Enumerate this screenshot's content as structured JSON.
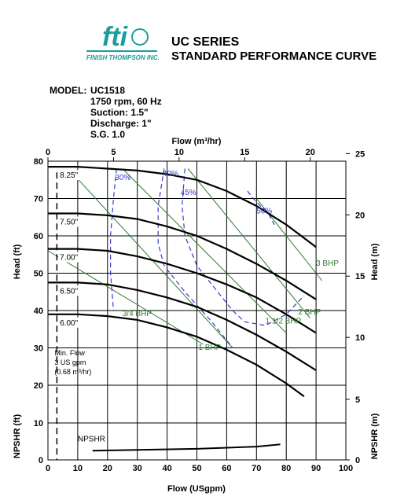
{
  "header": {
    "logo_text": "fti",
    "company": "FINISH THOMPSON INC.",
    "series": "UC SERIES",
    "subtitle": "STANDARD PERFORMANCE CURVE"
  },
  "model_info": {
    "label": "MODEL:",
    "lines": [
      "UC1518",
      "1750 rpm, 60 Hz",
      "Suction: 1.5\"",
      "Discharge: 1\"",
      "S.G. 1.0"
    ]
  },
  "colors": {
    "head_curve": "#000000",
    "efficiency": "#3a3acf",
    "bhp": "#2e7d32",
    "logo": "#1a9e9e"
  },
  "chart_data": {
    "type": "line",
    "xlabel": "Flow (USgpm)",
    "x2label": "Flow (m³/hr)",
    "ylabel": "Head (ft)",
    "y2label": "Head (m)",
    "npsh_ylabel": "NPSHR (ft)",
    "npsh_y2label": "NPSHR (m)",
    "xlim": [
      0,
      100
    ],
    "x_ticks": [
      0,
      10,
      20,
      30,
      40,
      50,
      60,
      70,
      80,
      90,
      100
    ],
    "x2_ticks": [
      0,
      5,
      10,
      15,
      20
    ],
    "ylim": [
      20,
      80
    ],
    "y_ticks": [
      20,
      30,
      40,
      50,
      60,
      70,
      80
    ],
    "y2_ticks": [
      10,
      15,
      20,
      25
    ],
    "npsh_ylim": [
      0,
      10
    ],
    "npsh_y_ticks": [
      0,
      10
    ],
    "npsh_y2_ticks": [
      0,
      5
    ],
    "series": [
      {
        "name": "8.25\"",
        "x": [
          0,
          10,
          20,
          30,
          40,
          50,
          55,
          60,
          70,
          80,
          90
        ],
        "y": [
          78.5,
          78.5,
          78,
          77.5,
          76.5,
          75,
          73.5,
          72,
          68,
          63,
          57
        ]
      },
      {
        "name": "7.50\"",
        "x": [
          0,
          10,
          20,
          30,
          40,
          50,
          60,
          70,
          80,
          90
        ],
        "y": [
          66,
          66,
          65.5,
          64.5,
          62.5,
          60,
          56.5,
          52.5,
          48,
          43
        ]
      },
      {
        "name": "7.00\"",
        "x": [
          0,
          10,
          20,
          30,
          40,
          50,
          60,
          70,
          80,
          90
        ],
        "y": [
          56.5,
          56.5,
          56,
          54.5,
          52.5,
          50,
          47,
          43.5,
          39,
          34
        ]
      },
      {
        "name": "6.50\"",
        "x": [
          0,
          10,
          20,
          30,
          40,
          50,
          60,
          70,
          80,
          90
        ],
        "y": [
          47.5,
          47.5,
          47,
          45.5,
          43.5,
          41,
          37.5,
          33.5,
          29,
          24
        ]
      },
      {
        "name": "6.00\"",
        "x": [
          0,
          10,
          20,
          30,
          40,
          50,
          60,
          70,
          80,
          86
        ],
        "y": [
          39,
          39,
          38.5,
          37.5,
          35.5,
          33,
          29.5,
          25.5,
          20.5,
          17
        ]
      }
    ],
    "efficiency": [
      {
        "label": "30%",
        "x": [
          23,
          22,
          21,
          21,
          22
        ],
        "y": [
          78,
          70,
          60,
          50,
          40
        ]
      },
      {
        "label": "40%",
        "x": [
          39,
          37,
          37,
          39,
          46,
          55,
          62
        ],
        "y": [
          78,
          68,
          58,
          52,
          45,
          37,
          30
        ]
      },
      {
        "label": "45%",
        "x": [
          46,
          45,
          46,
          50,
          57,
          62,
          66,
          73,
          80,
          86
        ],
        "y": [
          78,
          68,
          60,
          52,
          45,
          40,
          37,
          36,
          39,
          44
        ]
      },
      {
        "label": "50%",
        "x": [
          67,
          70,
          74,
          76
        ],
        "y": [
          72,
          69,
          66,
          63
        ]
      }
    ],
    "bhp": [
      {
        "label": "3/4 BHP",
        "x": [
          0,
          52
        ],
        "y": [
          56,
          31
        ]
      },
      {
        "label": "1 BHP",
        "x": [
          8,
          62
        ],
        "y": [
          77,
          30
        ]
      },
      {
        "label": "1 1/2 BHP",
        "x": [
          25,
          80
        ],
        "y": [
          78,
          34
        ]
      },
      {
        "label": "2 BHP",
        "x": [
          47,
          88
        ],
        "y": [
          78,
          38
        ]
      },
      {
        "label": "3 BHP",
        "x": [
          70,
          92
        ],
        "y": [
          70,
          48
        ]
      }
    ],
    "npshr": {
      "label": "NPSHR",
      "x": [
        15,
        30,
        50,
        70,
        78
      ],
      "y": [
        2.5,
        2.7,
        3.0,
        3.6,
        4.2
      ]
    },
    "min_flow": {
      "x": 3,
      "label": [
        "Min. Flow",
        "3 US gpm",
        "(0.68 m³/hr)"
      ]
    }
  }
}
